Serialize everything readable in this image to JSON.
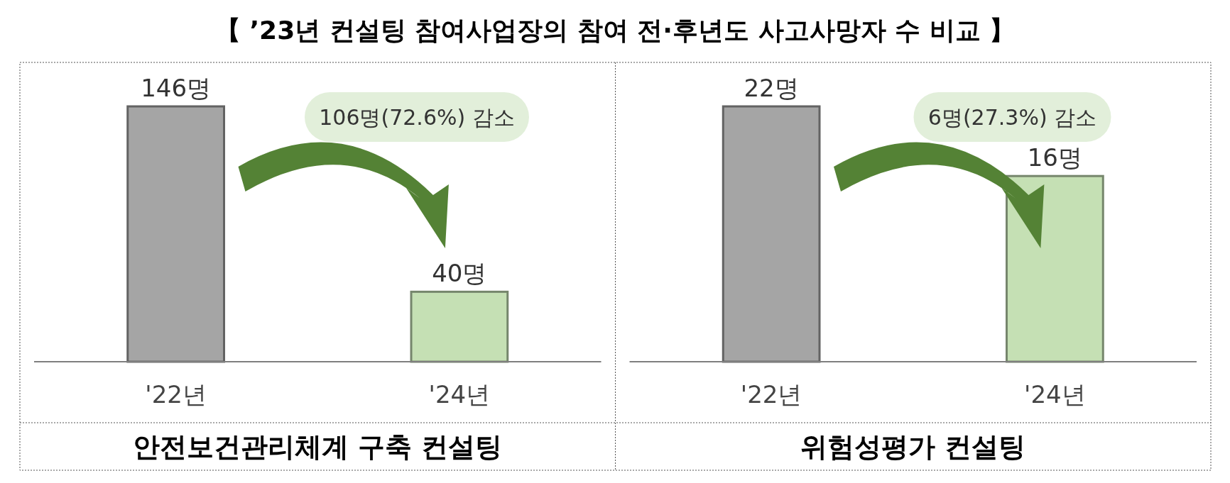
{
  "chart_data": [
    {
      "type": "bar",
      "title": "【 ’23년 컨설팅 참여사업장의 참여 전·후년도 사고사망자 수 비교 】",
      "xlabel": "안전보건관리체계 구축 컨설팅",
      "categories": [
        "'22년",
        "'24년"
      ],
      "values": [
        146,
        40
      ],
      "colors": [
        "#a5a5a5",
        "#c5e0b4"
      ],
      "value_labels": [
        "146명",
        "40명"
      ],
      "annotations": [
        "106명(72.6%) 감소"
      ]
    },
    {
      "type": "bar",
      "xlabel": "위험성평가 컨설팅",
      "categories": [
        "'22년",
        "'24년"
      ],
      "values": [
        22,
        16
      ],
      "colors": [
        "#a5a5a5",
        "#c5e0b4"
      ],
      "value_labels": [
        "22명",
        "16명"
      ],
      "annotations": [
        "6명(27.3%) 감소"
      ]
    }
  ]
}
